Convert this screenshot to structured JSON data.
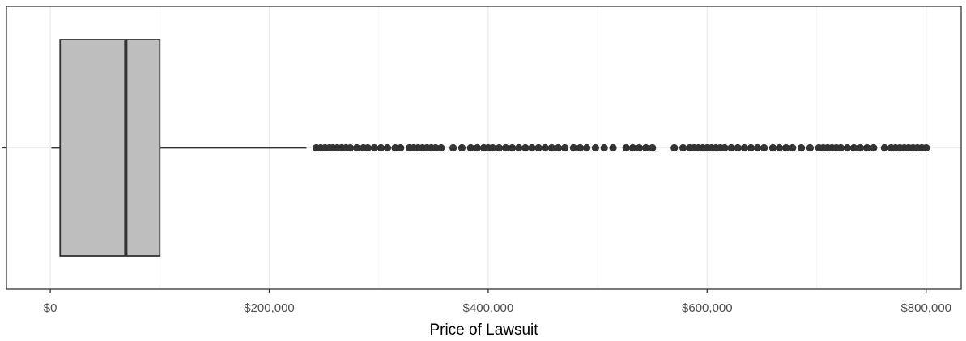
{
  "chart_data": {
    "type": "boxplot",
    "orientation": "horizontal",
    "title": "",
    "xlabel": "Price of Lawsuit",
    "ylabel": "",
    "xlim": [
      -40000,
      832000
    ],
    "x_ticks": [
      0,
      200000,
      400000,
      600000,
      800000
    ],
    "x_tick_labels": [
      "$0",
      "$200,000",
      "$400,000",
      "$600,000",
      "$800,000"
    ],
    "grid": true,
    "box": {
      "lower_whisker": 1000,
      "q1": 9000,
      "median": 69000,
      "q3": 100000,
      "upper_whisker": 234000
    },
    "outliers": [
      243000,
      247000,
      251000,
      255000,
      258000,
      262000,
      266000,
      270000,
      274000,
      280000,
      286000,
      290000,
      296000,
      302000,
      308000,
      315000,
      320000,
      328000,
      332000,
      336000,
      340000,
      344000,
      348000,
      352000,
      357000,
      368000,
      376000,
      384000,
      390000,
      396000,
      400000,
      404000,
      410000,
      416000,
      422000,
      428000,
      434000,
      440000,
      446000,
      452000,
      458000,
      464000,
      470000,
      478000,
      484000,
      490000,
      498000,
      506000,
      514000,
      526000,
      532000,
      538000,
      544000,
      550000,
      570000,
      578000,
      584000,
      588000,
      592000,
      596000,
      600000,
      604000,
      608000,
      612000,
      616000,
      622000,
      628000,
      634000,
      640000,
      646000,
      652000,
      660000,
      666000,
      672000,
      678000,
      686000,
      694000,
      702000,
      706000,
      710000,
      714000,
      718000,
      722000,
      728000,
      734000,
      740000,
      746000,
      752000,
      762000,
      768000,
      772000,
      776000,
      780000,
      784000,
      788000,
      792000,
      796000,
      800000
    ],
    "colors": {
      "box_fill": "#bebebe",
      "box_stroke": "#333333",
      "grid_major": "#ebebeb",
      "grid_minor": "#f5f5f5",
      "panel_border": "#333333",
      "point": "#333333"
    }
  }
}
